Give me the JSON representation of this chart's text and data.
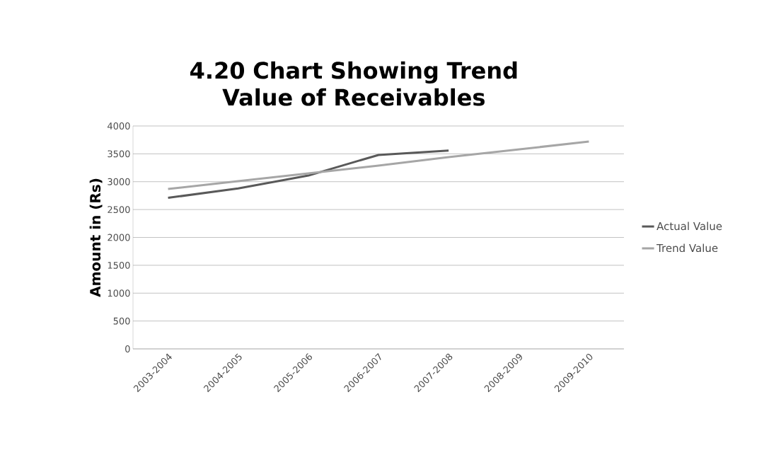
{
  "chart_data": {
    "type": "line",
    "title": "4.20 Chart Showing Trend Value of Receivables",
    "ylabel": "Amount in (Rs)",
    "categories": [
      "2003-2004",
      "2004-2005",
      "2005-2006",
      "2006-2007",
      "2007-2008",
      "2008-2009",
      "2009-2010"
    ],
    "series": [
      {
        "name": "Actual Value",
        "color": "#595959",
        "values": [
          2710,
          2880,
          3110,
          3480,
          3560,
          null,
          null
        ]
      },
      {
        "name": "Trend Value",
        "color": "#a6a6a6",
        "values": [
          2870,
          3010,
          3150,
          3290,
          3440,
          3580,
          3720
        ]
      }
    ],
    "ylim": [
      0,
      4000
    ],
    "yticks": [
      0,
      500,
      1000,
      1500,
      2000,
      2500,
      3000,
      3500,
      4000
    ],
    "grid": "y",
    "legend": "right",
    "marker": "none"
  }
}
